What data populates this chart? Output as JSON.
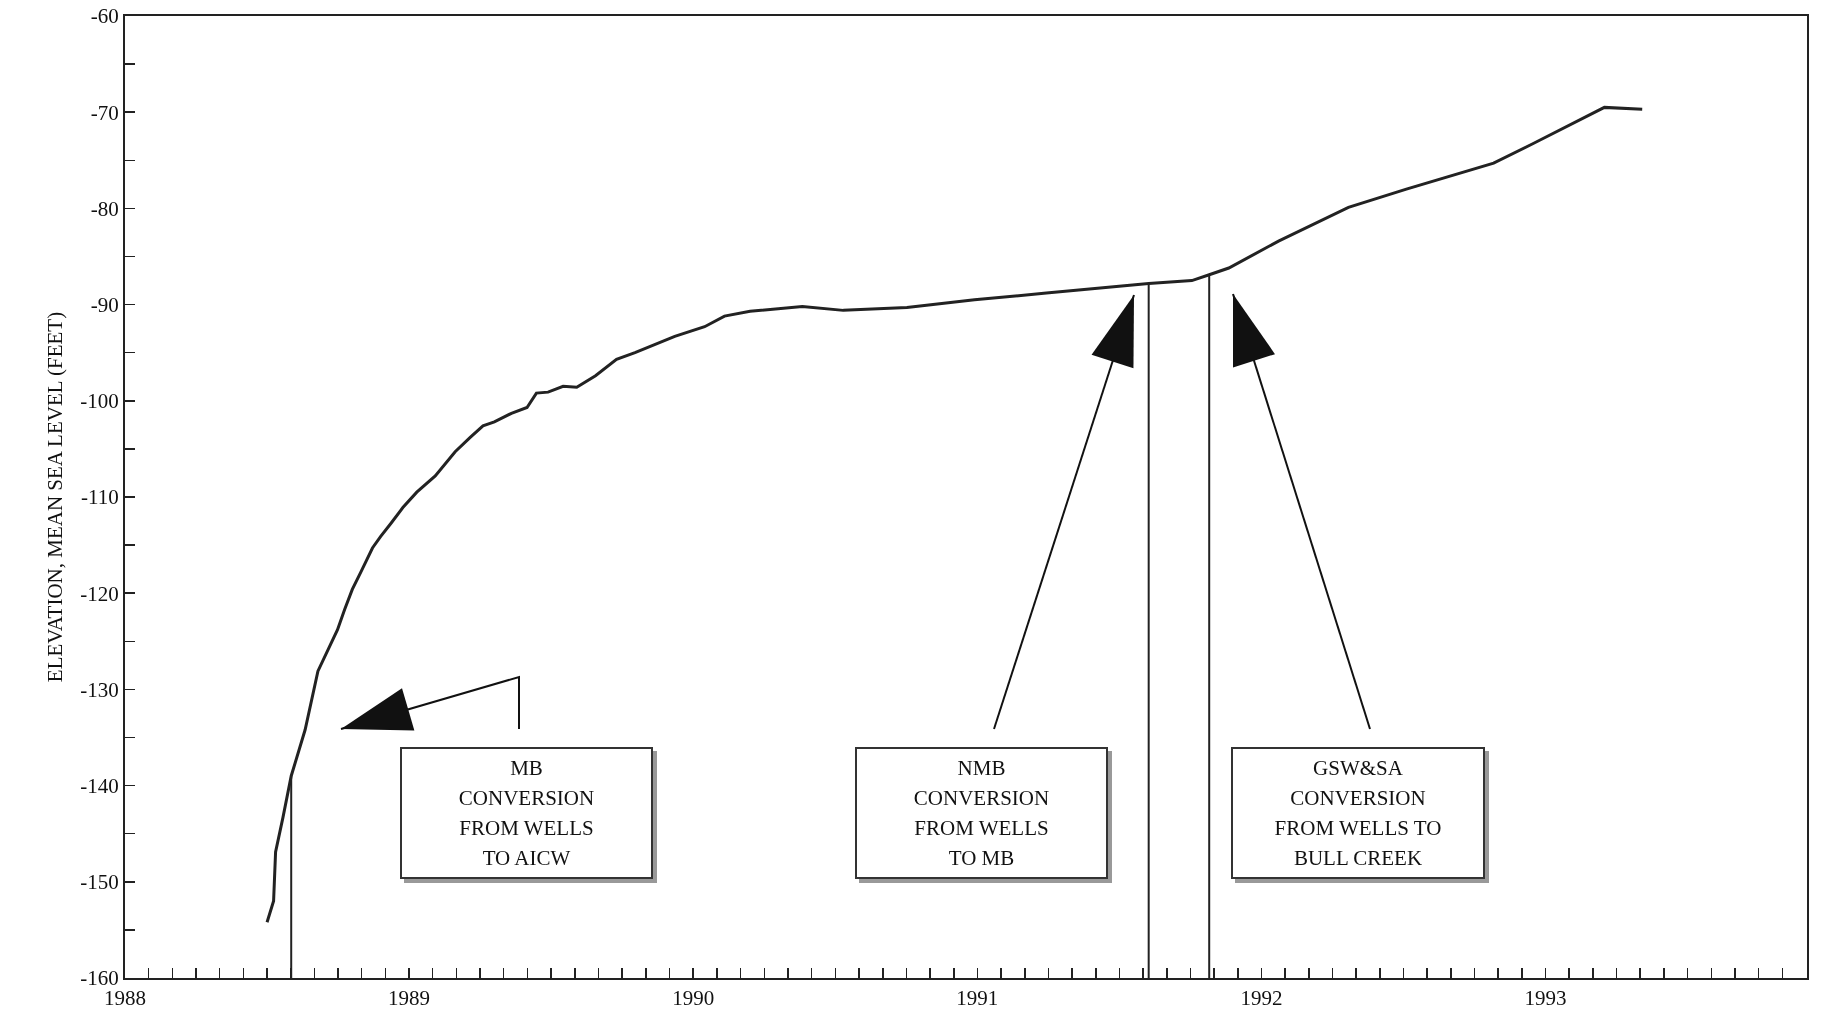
{
  "chart_data": {
    "type": "line",
    "ylabel": "ELEVATION, MEAN SEA LEVEL (FEET)",
    "x": [
      1988.5,
      1988.523,
      1988.53,
      1988.556,
      1988.585,
      1988.634,
      1988.679,
      1988.748,
      1988.773,
      1988.8,
      1988.83,
      1988.871,
      1988.9,
      1988.937,
      1988.978,
      1989.027,
      1989.092,
      1989.162,
      1989.215,
      1989.26,
      1989.3,
      1989.36,
      1989.415,
      1989.448,
      1989.489,
      1989.542,
      1989.59,
      1989.656,
      1989.73,
      1989.795,
      1989.935,
      1990.04,
      1990.11,
      1990.2,
      1990.384,
      1990.528,
      1990.752,
      1990.99,
      1991.243,
      1991.603,
      1991.755,
      1991.816,
      1991.885,
      1992.06,
      1992.306,
      1992.51,
      1992.817,
      1992.96,
      1993.207,
      1993.34
    ],
    "series": [
      {
        "color": "#222222",
        "values": [
          -154.2,
          -152.0,
          -146.9,
          -143.3,
          -139.0,
          -134.2,
          -128.1,
          -123.8,
          -121.7,
          -119.6,
          -117.8,
          -115.3,
          -114.1,
          -112.7,
          -111.1,
          -109.5,
          -107.8,
          -105.3,
          -103.8,
          -102.6,
          -102.2,
          -101.3,
          -100.7,
          -99.2,
          -99.1,
          -98.5,
          -98.6,
          -97.4,
          -95.7,
          -95.0,
          -93.3,
          -92.3,
          -91.2,
          -90.7,
          -90.2,
          -90.6,
          -90.3,
          -89.5,
          -88.8,
          -87.8,
          -87.5,
          -86.9,
          -86.2,
          -83.4,
          -79.9,
          -78.0,
          -75.3,
          -73.2,
          -69.5,
          -69.7
        ]
      }
    ],
    "xlim": [
      1988,
      1993.92
    ],
    "ylim": [
      -160,
      -60
    ],
    "xticks": [
      1988,
      {
        "value": 1988.083,
        "label": null
      },
      {
        "value": 1988.167,
        "label": null
      },
      {
        "value": 1988.25,
        "label": null
      },
      {
        "value": 1988.333,
        "label": null
      },
      {
        "value": 1988.417,
        "label": null
      },
      {
        "value": 1988.5,
        "label": null
      },
      {
        "value": 1988.583,
        "label": null
      },
      {
        "value": 1988.667,
        "label": null
      },
      {
        "value": 1988.75,
        "label": null
      },
      {
        "value": 1988.833,
        "label": null
      },
      {
        "value": 1988.917,
        "label": null
      },
      1989,
      {
        "value": 1989.083,
        "label": null
      },
      {
        "value": 1989.167,
        "label": null
      },
      {
        "value": 1989.25,
        "label": null
      },
      {
        "value": 1989.333,
        "label": null
      },
      {
        "value": 1989.417,
        "label": null
      },
      {
        "value": 1989.5,
        "label": null
      },
      {
        "value": 1989.583,
        "label": null
      },
      {
        "value": 1989.667,
        "label": null
      },
      {
        "value": 1989.75,
        "label": null
      },
      {
        "value": 1989.833,
        "label": null
      },
      {
        "value": 1989.917,
        "label": null
      },
      1990,
      {
        "value": 1990.083,
        "label": null
      },
      {
        "value": 1990.167,
        "label": null
      },
      {
        "value": 1990.25,
        "label": null
      },
      {
        "value": 1990.333,
        "label": null
      },
      {
        "value": 1990.417,
        "label": null
      },
      {
        "value": 1990.5,
        "label": null
      },
      {
        "value": 1990.583,
        "label": null
      },
      {
        "value": 1990.667,
        "label": null
      },
      {
        "value": 1990.75,
        "label": null
      },
      {
        "value": 1990.833,
        "label": null
      },
      {
        "value": 1990.917,
        "label": null
      },
      1991,
      {
        "value": 1991.083,
        "label": null
      },
      {
        "value": 1991.167,
        "label": null
      },
      {
        "value": 1991.25,
        "label": null
      },
      {
        "value": 1991.333,
        "label": null
      },
      {
        "value": 1991.417,
        "label": null
      },
      {
        "value": 1991.5,
        "label": null
      },
      {
        "value": 1991.583,
        "label": null
      },
      {
        "value": 1991.667,
        "label": null
      },
      {
        "value": 1991.75,
        "label": null
      },
      {
        "value": 1991.833,
        "label": null
      },
      {
        "value": 1991.917,
        "label": null
      },
      1992,
      {
        "value": 1992.083,
        "label": null
      },
      {
        "value": 1992.167,
        "label": null
      },
      {
        "value": 1992.25,
        "label": null
      },
      {
        "value": 1992.333,
        "label": null
      },
      {
        "value": 1992.417,
        "label": null
      },
      {
        "value": 1992.5,
        "label": null
      },
      {
        "value": 1992.583,
        "label": null
      },
      {
        "value": 1992.667,
        "label": null
      },
      {
        "value": 1992.75,
        "label": null
      },
      {
        "value": 1992.833,
        "label": null
      },
      {
        "value": 1992.917,
        "label": null
      },
      1993,
      {
        "value": 1993.083,
        "label": null
      },
      {
        "value": 1993.167,
        "label": null
      },
      {
        "value": 1993.25,
        "label": null
      },
      {
        "value": 1993.333,
        "label": null
      },
      {
        "value": 1993.417,
        "label": null
      },
      {
        "value": 1993.5,
        "label": null
      },
      {
        "value": 1993.583,
        "label": null
      },
      {
        "value": 1993.667,
        "label": null
      },
      {
        "value": 1993.75,
        "label": null
      },
      {
        "value": 1993.833,
        "label": null
      },
      {
        "value": 1993.917,
        "label": null
      }
    ],
    "yticks": [
      -60,
      {
        "value": -65,
        "label": null
      },
      -70,
      {
        "value": -75,
        "label": null
      },
      -80,
      {
        "value": -85,
        "label": null
      },
      -90,
      {
        "value": -95,
        "label": null
      },
      -100,
      {
        "value": -105,
        "label": null
      },
      -110,
      {
        "value": -115,
        "label": null
      },
      -120,
      {
        "value": -125,
        "label": null
      },
      -130,
      {
        "value": -135,
        "label": null
      },
      -140,
      {
        "value": -145,
        "label": null
      },
      -150,
      {
        "value": -155,
        "label": null
      },
      -160
    ],
    "ref_lines": [
      {
        "axis": "x",
        "value": 1988.585,
        "color": "#222222"
      },
      {
        "axis": "x",
        "value": 1991.603,
        "color": "#222222"
      },
      {
        "axis": "x",
        "value": 1991.816,
        "color": "#222222"
      }
    ],
    "annotations": [
      "MB\nCONVERSION\nFROM WELLS\nTO AICW",
      "NMB\nCONVERSION\nFROM WELLS\nTO MB",
      "GSW&SA\nCONVERSION\nFROM WELLS TO\nBULL CREEK"
    ],
    "grid": false,
    "marker": "none",
    "line_style": "solid"
  }
}
